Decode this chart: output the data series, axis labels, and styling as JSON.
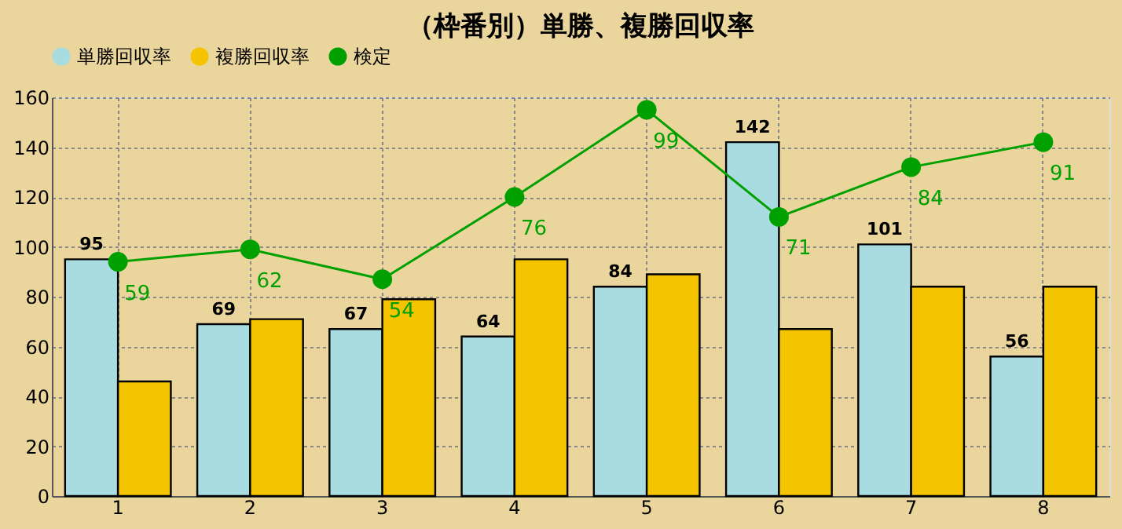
{
  "chart_data": {
    "type": "bar",
    "title": "（枠番別）単勝、複勝回収率",
    "categories": [
      "1",
      "2",
      "3",
      "4",
      "5",
      "6",
      "7",
      "8"
    ],
    "series": [
      {
        "name": "単勝回収率",
        "color": "#a8dce0",
        "values": [
          95,
          69,
          67,
          64,
          84,
          142,
          101,
          56
        ],
        "value_labels": [
          "95",
          "69",
          "67",
          "64",
          "84",
          "142",
          "101",
          "56"
        ]
      },
      {
        "name": "複勝回収率",
        "color": "#f5c400",
        "values": [
          46,
          71,
          79,
          95,
          89,
          67,
          84,
          84
        ]
      },
      {
        "name": "検定",
        "type": "line",
        "color": "#00a000",
        "marker": "circle",
        "values": [
          94,
          99,
          87,
          120,
          155,
          112,
          132,
          142
        ]
      }
    ],
    "annotations": [
      {
        "text": "59",
        "x": "1",
        "y": 94
      },
      {
        "text": "62",
        "x": "2",
        "y": 99
      },
      {
        "text": "54",
        "x": "3",
        "y": 87
      },
      {
        "text": "76",
        "x": "4",
        "y": 120
      },
      {
        "text": "99",
        "x": "5",
        "y": 155
      },
      {
        "text": "71",
        "x": "6",
        "y": 112
      },
      {
        "text": "84",
        "x": "7",
        "y": 132
      },
      {
        "text": "91",
        "x": "8",
        "y": 142
      }
    ],
    "ylim": [
      0,
      160
    ],
    "yticks": [
      0,
      20,
      40,
      60,
      80,
      100,
      120,
      140,
      160
    ],
    "grid": true,
    "legend": "top"
  }
}
